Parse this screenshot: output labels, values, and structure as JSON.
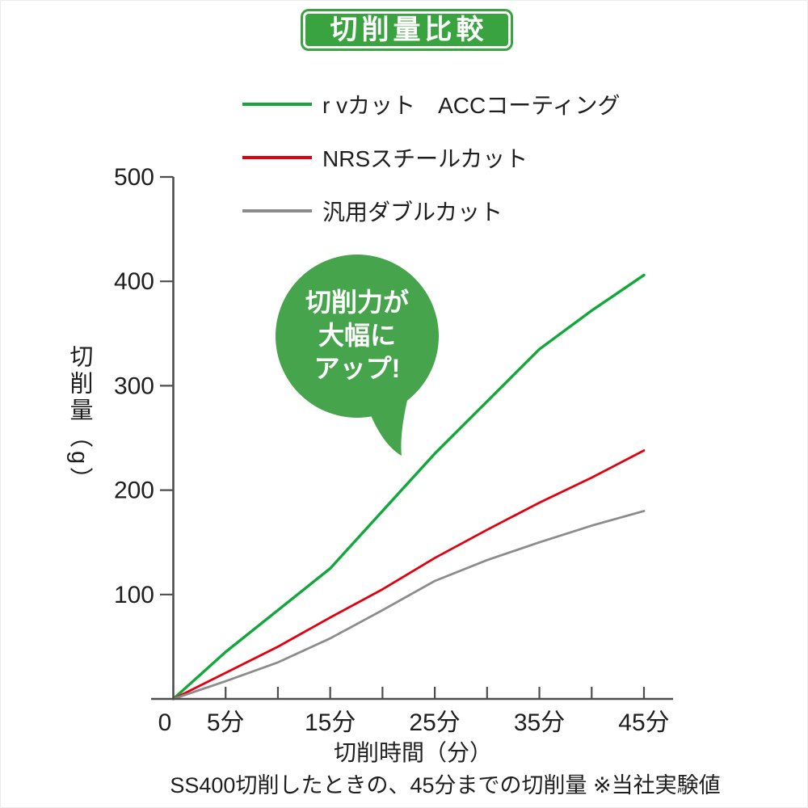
{
  "title_badge": {
    "label": "切削量比較",
    "bg_color": "#38a33f"
  },
  "legend": {
    "items": [
      {
        "label": "r vカット　ACCコーティング",
        "color": "#12a73b"
      },
      {
        "label": "NRSスチールカット",
        "color": "#e2000f"
      },
      {
        "label": "汎用ダブルカット",
        "color": "#8c8c8c"
      }
    ]
  },
  "bubble": {
    "lines": [
      "切削力が",
      "大幅に",
      "アップ!"
    ],
    "color": "#46a44d"
  },
  "axis": {
    "color": "#4d4d4d",
    "text_color": "#1e1e1e"
  },
  "caption": {
    "text": "SS400切削したときの、45分までの切削量 ※当社実験値"
  },
  "chart_data": {
    "type": "line",
    "title": "切削量比較",
    "xlabel": "切削時間（分）",
    "ylabel": "切削量（g）",
    "x": [
      0,
      5,
      10,
      15,
      20,
      25,
      30,
      35,
      40,
      45
    ],
    "series": [
      {
        "name": "r vカット　ACCコーティング",
        "color": "#12a73b",
        "values": [
          0,
          45,
          85,
          125,
          180,
          235,
          285,
          335,
          372,
          406
        ]
      },
      {
        "name": "NRSスチールカット",
        "color": "#e2000f",
        "values": [
          0,
          25,
          50,
          78,
          105,
          135,
          162,
          188,
          212,
          238
        ]
      },
      {
        "name": "汎用ダブルカット",
        "color": "#8c8c8c",
        "values": [
          0,
          17,
          35,
          58,
          85,
          113,
          133,
          150,
          166,
          180
        ]
      }
    ],
    "xlim": [
      0,
      48
    ],
    "ylim": [
      0,
      500
    ],
    "y_ticks": [
      100,
      200,
      300,
      400,
      500
    ],
    "x_ticks": [
      0,
      5,
      10,
      15,
      20,
      25,
      30,
      35,
      40,
      45
    ],
    "x_tick_labels": [
      {
        "x": 0,
        "label": "0"
      },
      {
        "x": 5,
        "label": "5分"
      },
      {
        "x": 15,
        "label": "15分"
      },
      {
        "x": 25,
        "label": "25分"
      },
      {
        "x": 35,
        "label": "35分"
      },
      {
        "x": 45,
        "label": "45分"
      }
    ],
    "grid": false,
    "legend_position": "top",
    "annotation": "切削力が大幅にアップ!"
  }
}
